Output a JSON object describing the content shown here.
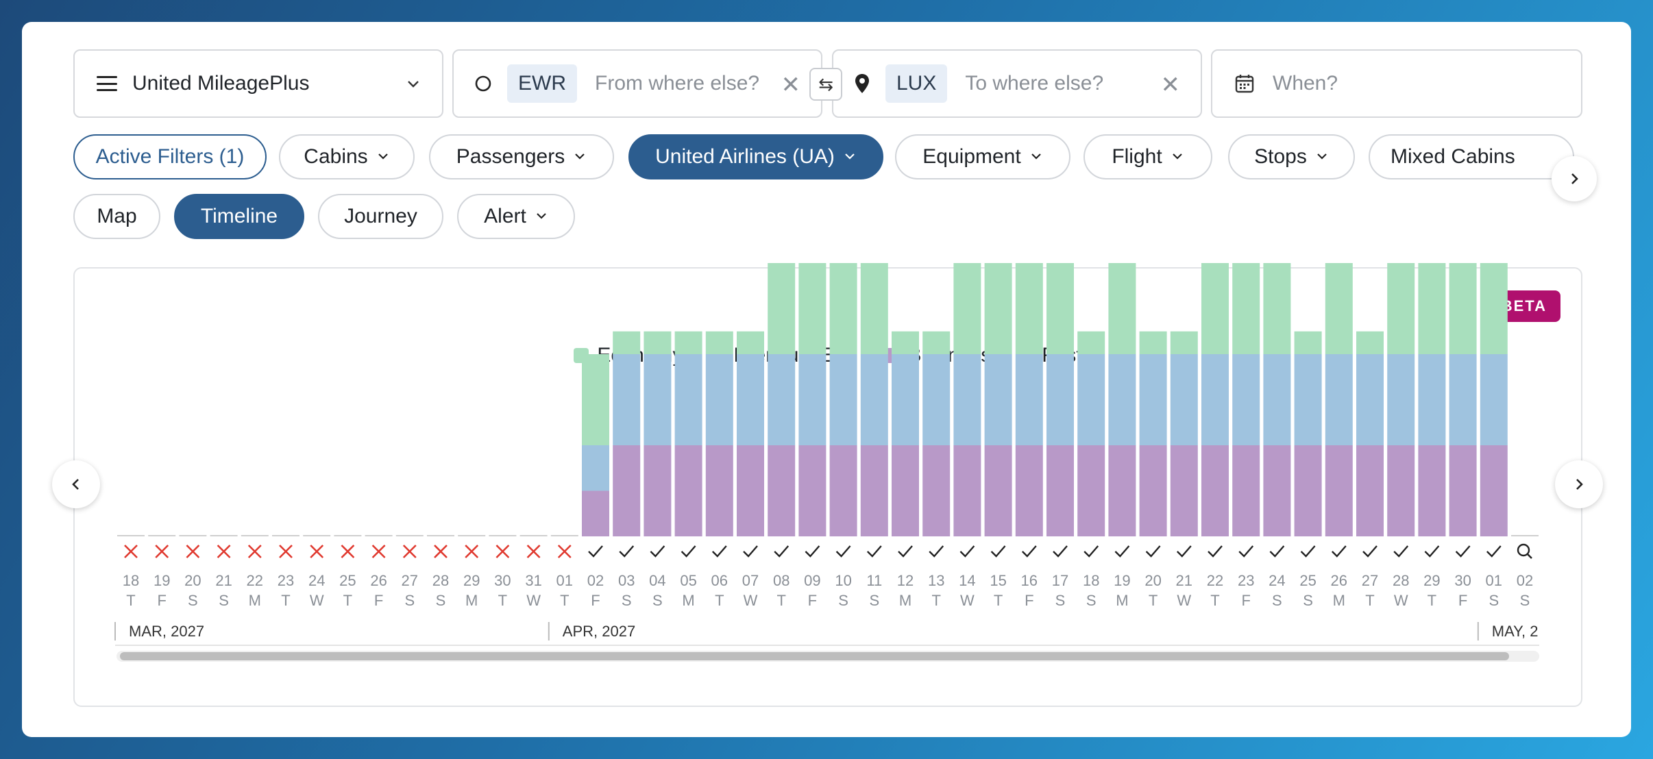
{
  "search": {
    "program": "United MileagePlus",
    "origin_code": "EWR",
    "origin_placeholder": "From where else?",
    "dest_code": "LUX",
    "dest_placeholder": "To where else?",
    "when_placeholder": "When?"
  },
  "filters": [
    "Active Filters (1)",
    "Cabins",
    "Passengers",
    "United Airlines (UA)",
    "Equipment",
    "Flight",
    "Stops",
    "Mixed Cabins"
  ],
  "views": [
    "Map",
    "Timeline",
    "Journey",
    "Alert"
  ],
  "badge": "BETA",
  "colors": {
    "economy": "#a8dfbd",
    "premium": "#9fc3df",
    "business": "#b899c8",
    "first": "#e9b0a8",
    "accent": "#2c5d8f",
    "no_avail": "#e0392f"
  },
  "chart_data": {
    "type": "bar",
    "legend": [
      "Economy",
      "Premium Eco",
      "Business",
      "First"
    ],
    "days": [
      "18",
      "19",
      "20",
      "21",
      "22",
      "23",
      "24",
      "25",
      "26",
      "27",
      "28",
      "29",
      "30",
      "31",
      "01",
      "02",
      "03",
      "04",
      "05",
      "06",
      "07",
      "08",
      "09",
      "10",
      "11",
      "12",
      "13",
      "14",
      "15",
      "16",
      "17",
      "18",
      "19",
      "20",
      "21",
      "22",
      "23",
      "24",
      "25",
      "26",
      "27",
      "28",
      "29",
      "30",
      "01",
      "02"
    ],
    "weekdays": [
      "T",
      "F",
      "S",
      "S",
      "M",
      "T",
      "W",
      "T",
      "F",
      "S",
      "S",
      "M",
      "T",
      "W",
      "T",
      "F",
      "S",
      "S",
      "M",
      "T",
      "W",
      "T",
      "F",
      "S",
      "S",
      "M",
      "T",
      "W",
      "T",
      "F",
      "S",
      "S",
      "M",
      "T",
      "W",
      "T",
      "F",
      "S",
      "S",
      "M",
      "T",
      "W",
      "T",
      "F",
      "S",
      "S"
    ],
    "status": [
      "x",
      "x",
      "x",
      "x",
      "x",
      "x",
      "x",
      "x",
      "x",
      "x",
      "x",
      "x",
      "x",
      "x",
      "x",
      "check",
      "check",
      "check",
      "check",
      "check",
      "check",
      "check",
      "check",
      "check",
      "check",
      "check",
      "check",
      "check",
      "check",
      "check",
      "check",
      "check",
      "check",
      "check",
      "check",
      "check",
      "check",
      "check",
      "check",
      "check",
      "check",
      "check",
      "check",
      "check",
      "check",
      "search"
    ],
    "series": [
      {
        "name": "Business",
        "values": [
          0,
          0,
          0,
          0,
          0,
          0,
          0,
          0,
          0,
          0,
          0,
          0,
          0,
          0,
          0,
          1,
          2,
          2,
          2,
          2,
          2,
          2,
          2,
          2,
          2,
          2,
          2,
          2,
          2,
          2,
          2,
          2,
          2,
          2,
          2,
          2,
          2,
          2,
          2,
          2,
          2,
          2,
          2,
          2,
          2,
          0
        ]
      },
      {
        "name": "Premium Eco",
        "values": [
          0,
          0,
          0,
          0,
          0,
          0,
          0,
          0,
          0,
          0,
          0,
          0,
          0,
          0,
          0,
          1,
          2,
          2,
          2,
          2,
          2,
          2,
          2,
          2,
          2,
          2,
          2,
          2,
          2,
          2,
          2,
          2,
          2,
          2,
          2,
          2,
          2,
          2,
          2,
          2,
          2,
          2,
          2,
          2,
          2,
          0
        ]
      },
      {
        "name": "Economy",
        "values": [
          0,
          0,
          0,
          0,
          0,
          0,
          0,
          0,
          0,
          0,
          0,
          0,
          0,
          0,
          0,
          2,
          0.5,
          0.5,
          0.5,
          0.5,
          0.5,
          2,
          2,
          2,
          2,
          0.5,
          0.5,
          2,
          2,
          2,
          2,
          0.5,
          2,
          0.5,
          0.5,
          2,
          2,
          2,
          0.5,
          2,
          0.5,
          2,
          2,
          2,
          2,
          0
        ]
      },
      {
        "name": "First",
        "values": [
          0,
          0,
          0,
          0,
          0,
          0,
          0,
          0,
          0,
          0,
          0,
          0,
          0,
          0,
          0,
          0,
          0,
          0,
          0,
          0,
          0,
          0,
          0,
          0,
          0,
          0,
          0,
          0,
          0,
          0,
          0,
          0,
          0,
          0,
          0,
          0,
          0,
          0,
          0,
          0,
          0,
          0,
          0,
          0,
          0,
          0
        ]
      }
    ],
    "months": [
      {
        "label": "MAR, 2027",
        "start": 0
      },
      {
        "label": "APR, 2027",
        "start": 14
      },
      {
        "label": "MAY, 2",
        "start": 44
      }
    ]
  }
}
